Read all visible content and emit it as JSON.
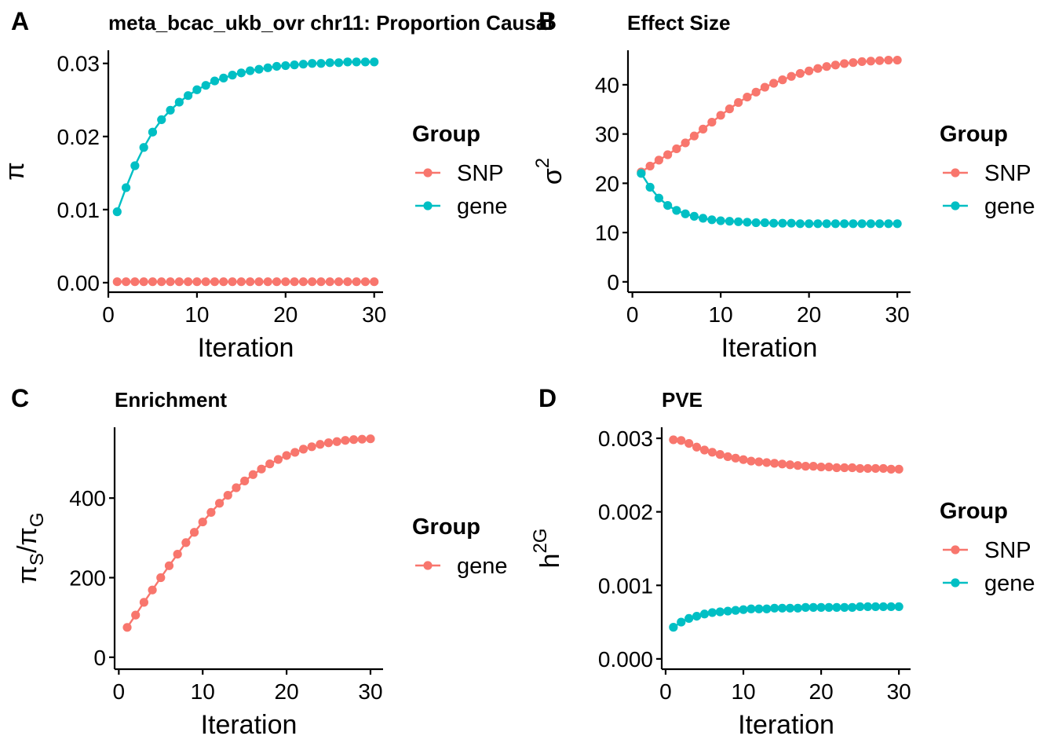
{
  "colors": {
    "SNP": "#F8766D",
    "gene": "#00BFC4"
  },
  "chart_data": [
    {
      "panel": "A",
      "type": "line",
      "title": "meta_bcac_ukb_ovr chr11: Proportion Causal",
      "xlabel": "Iteration",
      "ylabel": "π",
      "xlim": [
        0,
        31
      ],
      "ylim": [
        -0.0013,
        0.0318
      ],
      "xticks": [
        0,
        10,
        20,
        30
      ],
      "yticks": [
        0.0,
        0.01,
        0.02,
        0.03
      ],
      "ytick_labels": [
        "0.00",
        "0.01",
        "0.02",
        "0.03"
      ],
      "legend_title": "Group",
      "grid": false,
      "series": [
        {
          "name": "SNP",
          "color_key": "SNP",
          "x": [
            1,
            2,
            3,
            4,
            5,
            6,
            7,
            8,
            9,
            10,
            11,
            12,
            13,
            14,
            15,
            16,
            17,
            18,
            19,
            20,
            21,
            22,
            23,
            24,
            25,
            26,
            27,
            28,
            29,
            30
          ],
          "values": [
            0.00013,
            0.00013,
            0.00013,
            0.00013,
            0.00013,
            0.00013,
            0.00013,
            0.00013,
            0.00013,
            0.00013,
            0.00013,
            0.00013,
            0.00013,
            0.00013,
            0.00013,
            0.00013,
            0.00013,
            0.00013,
            0.00013,
            0.00013,
            0.00013,
            0.00013,
            0.00013,
            0.00013,
            0.00013,
            0.00013,
            0.00013,
            0.00013,
            0.00013,
            0.00013
          ]
        },
        {
          "name": "gene",
          "color_key": "gene",
          "x": [
            1,
            2,
            3,
            4,
            5,
            6,
            7,
            8,
            9,
            10,
            11,
            12,
            13,
            14,
            15,
            16,
            17,
            18,
            19,
            20,
            21,
            22,
            23,
            24,
            25,
            26,
            27,
            28,
            29,
            30
          ],
          "values": [
            0.0097,
            0.013,
            0.016,
            0.0185,
            0.0206,
            0.0223,
            0.0236,
            0.0247,
            0.0256,
            0.0264,
            0.027,
            0.0276,
            0.028,
            0.0284,
            0.0287,
            0.029,
            0.0292,
            0.0294,
            0.0296,
            0.0297,
            0.0298,
            0.0299,
            0.03,
            0.03,
            0.0301,
            0.0301,
            0.0302,
            0.0302,
            0.0302,
            0.0302
          ]
        }
      ]
    },
    {
      "panel": "B",
      "type": "line",
      "title": "Effect Size",
      "xlabel": "Iteration",
      "ylabel": "σ",
      "ylabel_sup": "2",
      "xlim": [
        -0.5,
        31.5
      ],
      "ylim": [
        -2.1,
        47
      ],
      "xticks": [
        0,
        10,
        20,
        30
      ],
      "yticks": [
        0,
        10,
        20,
        30,
        40
      ],
      "ytick_labels": [
        "0",
        "10",
        "20",
        "30",
        "40"
      ],
      "legend_title": "Group",
      "grid": false,
      "series": [
        {
          "name": "SNP",
          "color_key": "SNP",
          "x": [
            1,
            2,
            3,
            4,
            5,
            6,
            7,
            8,
            9,
            10,
            11,
            12,
            13,
            14,
            15,
            16,
            17,
            18,
            19,
            20,
            21,
            22,
            23,
            24,
            25,
            26,
            27,
            28,
            29,
            30
          ],
          "values": [
            22.3,
            23.5,
            24.7,
            25.8,
            27.0,
            28.2,
            29.6,
            31.0,
            32.4,
            33.8,
            35.1,
            36.4,
            37.5,
            38.5,
            39.5,
            40.3,
            41.0,
            41.7,
            42.3,
            42.8,
            43.3,
            43.7,
            44.0,
            44.3,
            44.5,
            44.7,
            44.8,
            44.9,
            45.0,
            45.0
          ]
        },
        {
          "name": "gene",
          "color_key": "gene",
          "x": [
            1,
            2,
            3,
            4,
            5,
            6,
            7,
            8,
            9,
            10,
            11,
            12,
            13,
            14,
            15,
            16,
            17,
            18,
            19,
            20,
            21,
            22,
            23,
            24,
            25,
            26,
            27,
            28,
            29,
            30
          ],
          "values": [
            22.0,
            19.2,
            17.0,
            15.5,
            14.5,
            13.8,
            13.3,
            12.9,
            12.6,
            12.4,
            12.3,
            12.2,
            12.1,
            12.0,
            12.0,
            11.9,
            11.9,
            11.9,
            11.8,
            11.8,
            11.8,
            11.8,
            11.8,
            11.8,
            11.8,
            11.8,
            11.8,
            11.8,
            11.8,
            11.8
          ]
        }
      ]
    },
    {
      "panel": "C",
      "type": "line",
      "title": "Enrichment",
      "xlabel": "Iteration",
      "ylabel": "πS/πG",
      "xlim": [
        -0.5,
        31.5
      ],
      "ylim": [
        -30,
        578
      ],
      "xticks": [
        0,
        10,
        20,
        30
      ],
      "yticks": [
        0,
        200,
        400
      ],
      "ytick_labels": [
        "0",
        "200",
        "400"
      ],
      "legend_title": "Group",
      "grid": false,
      "series": [
        {
          "name": "gene",
          "color_key": "SNP",
          "x": [
            1,
            2,
            3,
            4,
            5,
            6,
            7,
            8,
            9,
            10,
            11,
            12,
            13,
            14,
            15,
            16,
            17,
            18,
            19,
            20,
            21,
            22,
            23,
            24,
            25,
            26,
            27,
            28,
            29,
            30
          ],
          "values": [
            75,
            106,
            138,
            169,
            200,
            230,
            259,
            288,
            314,
            340,
            364,
            387,
            407,
            426,
            443,
            459,
            473,
            486,
            497,
            507,
            515,
            523,
            529,
            535,
            539,
            542,
            545,
            547,
            548,
            549
          ]
        }
      ]
    },
    {
      "panel": "D",
      "type": "line",
      "title": "PVE",
      "xlabel": "Iteration",
      "ylabel": "h",
      "ylabel_sup": "2G",
      "xlim": [
        -0.5,
        31.5
      ],
      "ylim": [
        -0.00014,
        0.00315
      ],
      "xticks": [
        0,
        10,
        20,
        30
      ],
      "yticks": [
        0.0,
        0.001,
        0.002,
        0.003
      ],
      "ytick_labels": [
        "0.000",
        "0.001",
        "0.002",
        "0.003"
      ],
      "legend_title": "Group",
      "grid": false,
      "series": [
        {
          "name": "SNP",
          "color_key": "SNP",
          "x": [
            1,
            2,
            3,
            4,
            5,
            6,
            7,
            8,
            9,
            10,
            11,
            12,
            13,
            14,
            15,
            16,
            17,
            18,
            19,
            20,
            21,
            22,
            23,
            24,
            25,
            26,
            27,
            28,
            29,
            30
          ],
          "values": [
            0.00298,
            0.00297,
            0.00293,
            0.00288,
            0.00284,
            0.00281,
            0.00278,
            0.00275,
            0.00273,
            0.00271,
            0.00269,
            0.00268,
            0.00267,
            0.00266,
            0.00265,
            0.00264,
            0.00263,
            0.00262,
            0.00262,
            0.00261,
            0.00261,
            0.0026,
            0.0026,
            0.0026,
            0.00259,
            0.00259,
            0.00259,
            0.00259,
            0.00258,
            0.00258
          ]
        },
        {
          "name": "gene",
          "color_key": "gene",
          "x": [
            1,
            2,
            3,
            4,
            5,
            6,
            7,
            8,
            9,
            10,
            11,
            12,
            13,
            14,
            15,
            16,
            17,
            18,
            19,
            20,
            21,
            22,
            23,
            24,
            25,
            26,
            27,
            28,
            29,
            30
          ],
          "values": [
            0.00043,
            0.0005,
            0.00055,
            0.00058,
            0.00061,
            0.00063,
            0.00064,
            0.00065,
            0.00066,
            0.00067,
            0.00068,
            0.00068,
            0.00068,
            0.00069,
            0.00069,
            0.00069,
            0.00069,
            0.0007,
            0.0007,
            0.0007,
            0.0007,
            0.0007,
            0.0007,
            0.0007,
            0.00071,
            0.00071,
            0.00071,
            0.00071,
            0.00071,
            0.00071
          ]
        }
      ]
    }
  ]
}
